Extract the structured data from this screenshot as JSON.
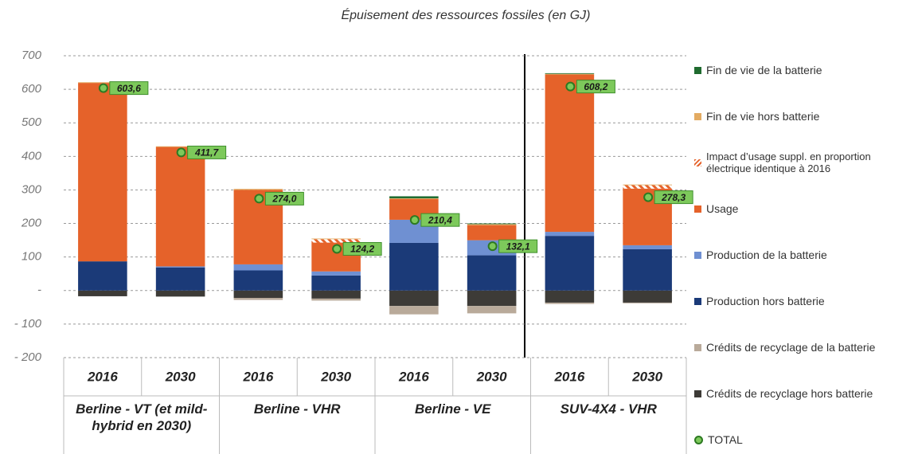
{
  "chart_data": {
    "type": "stacked_bar",
    "title": "Épuisement des ressources fossiles (en GJ)",
    "categories": [
      "2016",
      "2030",
      "2016",
      "2030",
      "2016",
      "2030",
      "2016",
      "2030"
    ],
    "groups": [
      "Berline - VT (et mild-hybrid en 2030)",
      "Berline - VHR",
      "Berline - VE",
      "SUV-4X4 - VHR"
    ],
    "ylim": [
      -200,
      700
    ],
    "yticks": [
      {
        "value": -200,
        "label": "- 200"
      },
      {
        "value": -100,
        "label": "- 100"
      },
      {
        "value": 0,
        "label": "-"
      },
      100,
      200,
      300,
      400,
      500,
      600,
      700
    ],
    "grid": true,
    "legend": "right",
    "series": [
      {
        "name": "Crédits de recyclage hors batterie",
        "color": "#3d3b37",
        "values": [
          -17,
          -18,
          -22,
          -24,
          -46,
          -46,
          -36,
          -36
        ]
      },
      {
        "name": "Crédits de recyclage de la batterie",
        "color": "#b9aa9a",
        "values": [
          0,
          0,
          -6,
          -6,
          -25,
          -22,
          -4,
          -2
        ]
      },
      {
        "name": "Production hors batterie",
        "color": "#1b3a78",
        "values": [
          87,
          69,
          60,
          45,
          142,
          105,
          163,
          123
        ]
      },
      {
        "name": "Production de la batterie",
        "color": "#6f90d2",
        "values": [
          0,
          3,
          18,
          12,
          69,
          45,
          12,
          12
        ]
      },
      {
        "name": "Usage",
        "color": "#e5622a",
        "values": [
          532,
          356,
          222,
          86,
          62,
          45,
          469,
          169
        ]
      },
      {
        "name": "Impact d’usage suppl. en proportion électrique identique à 2016",
        "color": "#e5622a",
        "hatch": true,
        "values": [
          0,
          0,
          0,
          10,
          0,
          0,
          0,
          10
        ]
      },
      {
        "name": "Fin de vie hors batterie",
        "color": "#e3ab62",
        "values": [
          2,
          2,
          3,
          2,
          2,
          3,
          2,
          2
        ]
      },
      {
        "name": "Fin de vie de la batterie",
        "color": "#1f6b2f",
        "values": [
          0,
          0,
          0,
          0,
          6,
          2,
          2,
          0
        ]
      }
    ],
    "total": {
      "name": "TOTAL",
      "color": "#7dc95b",
      "values": [
        603.6,
        411.7,
        274.0,
        124.2,
        210.4,
        132.1,
        608.2,
        278.3
      ],
      "value_labels": [
        "603,6",
        "411,7",
        "274,0",
        "124,2",
        "210,4",
        "132,1",
        "608,2",
        "278,3"
      ]
    }
  }
}
